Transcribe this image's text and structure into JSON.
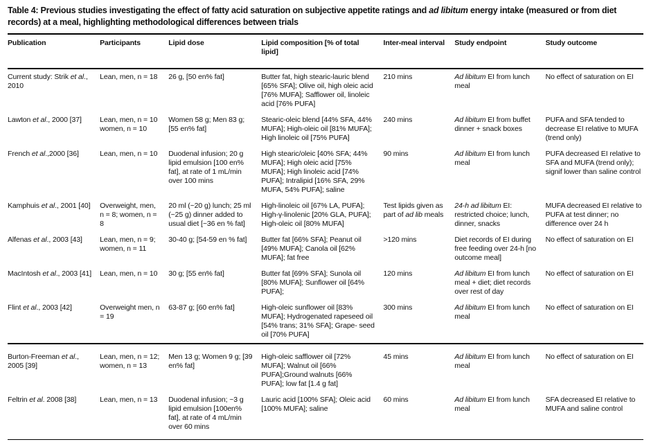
{
  "title": {
    "segments": [
      {
        "t": "Table 4: Previous studies investigating the effect of fatty acid saturation on subjective appetite ratings and "
      },
      {
        "t": "ad libitum",
        "i": true
      },
      {
        "t": " energy intake (measured or from diet records) at a meal, highlighting methodological differences between trials"
      }
    ]
  },
  "table": {
    "columns": [
      "Publication",
      "Participants",
      "Lipid dose",
      "Lipid composition [% of total lipid]",
      "Inter-meal interval",
      "Study endpoint",
      "Study outcome"
    ],
    "column_keys": [
      "publication",
      "participants",
      "dose",
      "composition",
      "interval",
      "endpoint",
      "outcome"
    ],
    "rows": [
      {
        "publication": [
          {
            "t": "Current study: Strik "
          },
          {
            "t": "et al",
            "i": true
          },
          {
            "t": "., 2010"
          }
        ],
        "participants": [
          {
            "t": "Lean, men, n = 18"
          }
        ],
        "dose": [
          {
            "t": "26 g, [50 en% fat]"
          }
        ],
        "composition": [
          {
            "t": "Butter fat, high stearic-lauric blend [65% SFA]; Olive oil, high oleic acid [76% MUFA]; Safflower oil, linoleic acid [76% PUFA]"
          }
        ],
        "interval": [
          {
            "t": "210 mins"
          }
        ],
        "endpoint": [
          {
            "t": "Ad libitum",
            "i": true
          },
          {
            "t": " EI from lunch meal"
          }
        ],
        "outcome": [
          {
            "t": "No effect of saturation on EI"
          }
        ]
      },
      {
        "publication": [
          {
            "t": "Lawton "
          },
          {
            "t": "et al",
            "i": true
          },
          {
            "t": "., 2000 [37]"
          }
        ],
        "participants": [
          {
            "t": "Lean, men, n = 10 women, n = 10"
          }
        ],
        "dose": [
          {
            "t": "Women 58 g; Men 83 g; [55 en% fat]"
          }
        ],
        "composition": [
          {
            "t": "Stearic-oleic blend [44% SFA, 44% MUFA]; High-oleic oil [81% MUFA]; High linoleic oil [75% PUFA]"
          }
        ],
        "interval": [
          {
            "t": "240 mins"
          }
        ],
        "endpoint": [
          {
            "t": "Ad libitum",
            "i": true
          },
          {
            "t": " EI from buffet dinner + snack boxes"
          }
        ],
        "outcome": [
          {
            "t": "PUFA and SFA tended to decrease EI relative to MUFA (trend only)"
          }
        ]
      },
      {
        "publication": [
          {
            "t": "French "
          },
          {
            "t": "et al",
            "i": true
          },
          {
            "t": ".,2000 [36]"
          }
        ],
        "participants": [
          {
            "t": "Lean, men, n = 10"
          }
        ],
        "dose": [
          {
            "t": "Duodenal infusion; 20 g lipid emulsion [100 en% fat], at rate of 1 mL/min over 100 mins"
          }
        ],
        "composition": [
          {
            "t": "High stearic/oleic [40% SFA; 44% MUFA]; High oleic acid [75% MUFA]; High linoleic acid [74% PUFA]; Intralipid [16% SFA, 29% MUFA, 54% PUFA]; saline"
          }
        ],
        "interval": [
          {
            "t": "90 mins"
          }
        ],
        "endpoint": [
          {
            "t": "Ad libitum",
            "i": true
          },
          {
            "t": " EI from lunch meal"
          }
        ],
        "outcome": [
          {
            "t": "PUFA decreased EI relative to SFA and MUFA (trend only); signif lower than saline control"
          }
        ]
      },
      {
        "publication": [
          {
            "t": "Kamphuis "
          },
          {
            "t": "et al",
            "i": true
          },
          {
            "t": "., 2001 [40]"
          }
        ],
        "participants": [
          {
            "t": "Overweight, men, n = 8; women, n = 8"
          }
        ],
        "dose": [
          {
            "t": "20 ml (~20 g) lunch; 25 ml (~25 g) dinner added to usual diet [~36 en % fat]"
          }
        ],
        "composition": [
          {
            "t": "High-linoleic oil [67% LA, PUFA]; High-γ-linolenic [20% GLA, PUFA]; High-oleic oil [80% MUFA]"
          }
        ],
        "interval": [
          {
            "t": "Test lipids given as part of "
          },
          {
            "t": "ad lib",
            "i": true
          },
          {
            "t": " meals"
          }
        ],
        "endpoint": [
          {
            "t": "24-h ad libitum",
            "i": true
          },
          {
            "t": " EI: restricted choice; lunch, dinner, snacks"
          }
        ],
        "outcome": [
          {
            "t": "MUFA decreased EI relative to PUFA at test dinner; no difference over 24 h"
          }
        ]
      },
      {
        "publication": [
          {
            "t": "Alfenas "
          },
          {
            "t": "et al",
            "i": true
          },
          {
            "t": "., 2003 [43]"
          }
        ],
        "participants": [
          {
            "t": "Lean, men, n = 9; women, n = 11"
          }
        ],
        "dose": [
          {
            "t": "30-40 g; [54-59 en % fat]"
          }
        ],
        "composition": [
          {
            "t": "Butter fat [66% SFA]; Peanut oil [49% MUFA]; Canola oil [62% MUFA]; fat free"
          }
        ],
        "interval": [
          {
            "t": ">120 mins"
          }
        ],
        "endpoint": [
          {
            "t": "Diet records of EI during free feeding over 24-h [no outcome meal]"
          }
        ],
        "outcome": [
          {
            "t": "No effect of saturation on EI"
          }
        ]
      },
      {
        "publication": [
          {
            "t": "MacIntosh "
          },
          {
            "t": "et al",
            "i": true
          },
          {
            "t": "., 2003 [41]"
          }
        ],
        "participants": [
          {
            "t": "Lean, men, n = 10"
          }
        ],
        "dose": [
          {
            "t": "30 g; [55 en% fat]"
          }
        ],
        "composition": [
          {
            "t": "Butter fat [69% SFA]; Sunola oil [80% MUFA]; Sunflower oil [64% PUFA];"
          }
        ],
        "interval": [
          {
            "t": "120 mins"
          }
        ],
        "endpoint": [
          {
            "t": "Ad libitum",
            "i": true
          },
          {
            "t": " EI from lunch meal + diet; diet records over rest of day"
          }
        ],
        "outcome": [
          {
            "t": "No effect of saturation on EI"
          }
        ]
      },
      {
        "publication": [
          {
            "t": "Flint "
          },
          {
            "t": "et al",
            "i": true
          },
          {
            "t": "., 2003 [42]"
          }
        ],
        "participants": [
          {
            "t": "Overweight men, n = 19"
          }
        ],
        "dose": [
          {
            "t": "63-87 g; [60 en% fat]"
          }
        ],
        "composition": [
          {
            "t": "High-oleic sunflower oil [83% MUFA]; Hydrogenated rapeseed oil [54% trans; 31% SFA]; Grape- seed oil [70% PUFA]"
          }
        ],
        "interval": [
          {
            "t": "300 mins"
          }
        ],
        "endpoint": [
          {
            "t": "Ad libitum",
            "i": true
          },
          {
            "t": " EI from lunch meal"
          }
        ],
        "outcome": [
          {
            "t": "No effect of saturation on EI"
          }
        ]
      },
      {
        "section_break": true,
        "publication": [
          {
            "t": "Burton-Freeman "
          },
          {
            "t": "et al",
            "i": true
          },
          {
            "t": "., 2005 [39]"
          }
        ],
        "participants": [
          {
            "t": "Lean, men, n = 12; women, n = 13"
          }
        ],
        "dose": [
          {
            "t": "Men 13 g; Women 9 g; [39 en% fat]"
          }
        ],
        "composition": [
          {
            "t": "High-oleic safflower oil [72% MUFA]; Walnut oil [66% PUFA];Ground walnuts [66% PUFA]; low fat [1.4 g fat]"
          }
        ],
        "interval": [
          {
            "t": "45 mins"
          }
        ],
        "endpoint": [
          {
            "t": "Ad libitum",
            "i": true
          },
          {
            "t": " EI from lunch meal"
          }
        ],
        "outcome": [
          {
            "t": "No effect of saturation on EI"
          }
        ]
      },
      {
        "publication": [
          {
            "t": "Feltrin "
          },
          {
            "t": "et al",
            "i": true
          },
          {
            "t": ". 2008 [38]"
          }
        ],
        "participants": [
          {
            "t": "Lean, men, n = 13"
          }
        ],
        "dose": [
          {
            "t": "Duodenal infusion; ~3 g lipid emulsion [100en% fat], at rate of 4 mL/min over 60 mins"
          }
        ],
        "composition": [
          {
            "t": "Lauric acid [100% SFA]; Oleic acid [100% MUFA]; saline"
          }
        ],
        "interval": [
          {
            "t": "60 mins"
          }
        ],
        "endpoint": [
          {
            "t": "Ad libitum",
            "i": true
          },
          {
            "t": " EI from lunch meal"
          }
        ],
        "outcome": [
          {
            "t": "SFA decreased EI relative to MUFA and saline control"
          }
        ]
      }
    ]
  }
}
